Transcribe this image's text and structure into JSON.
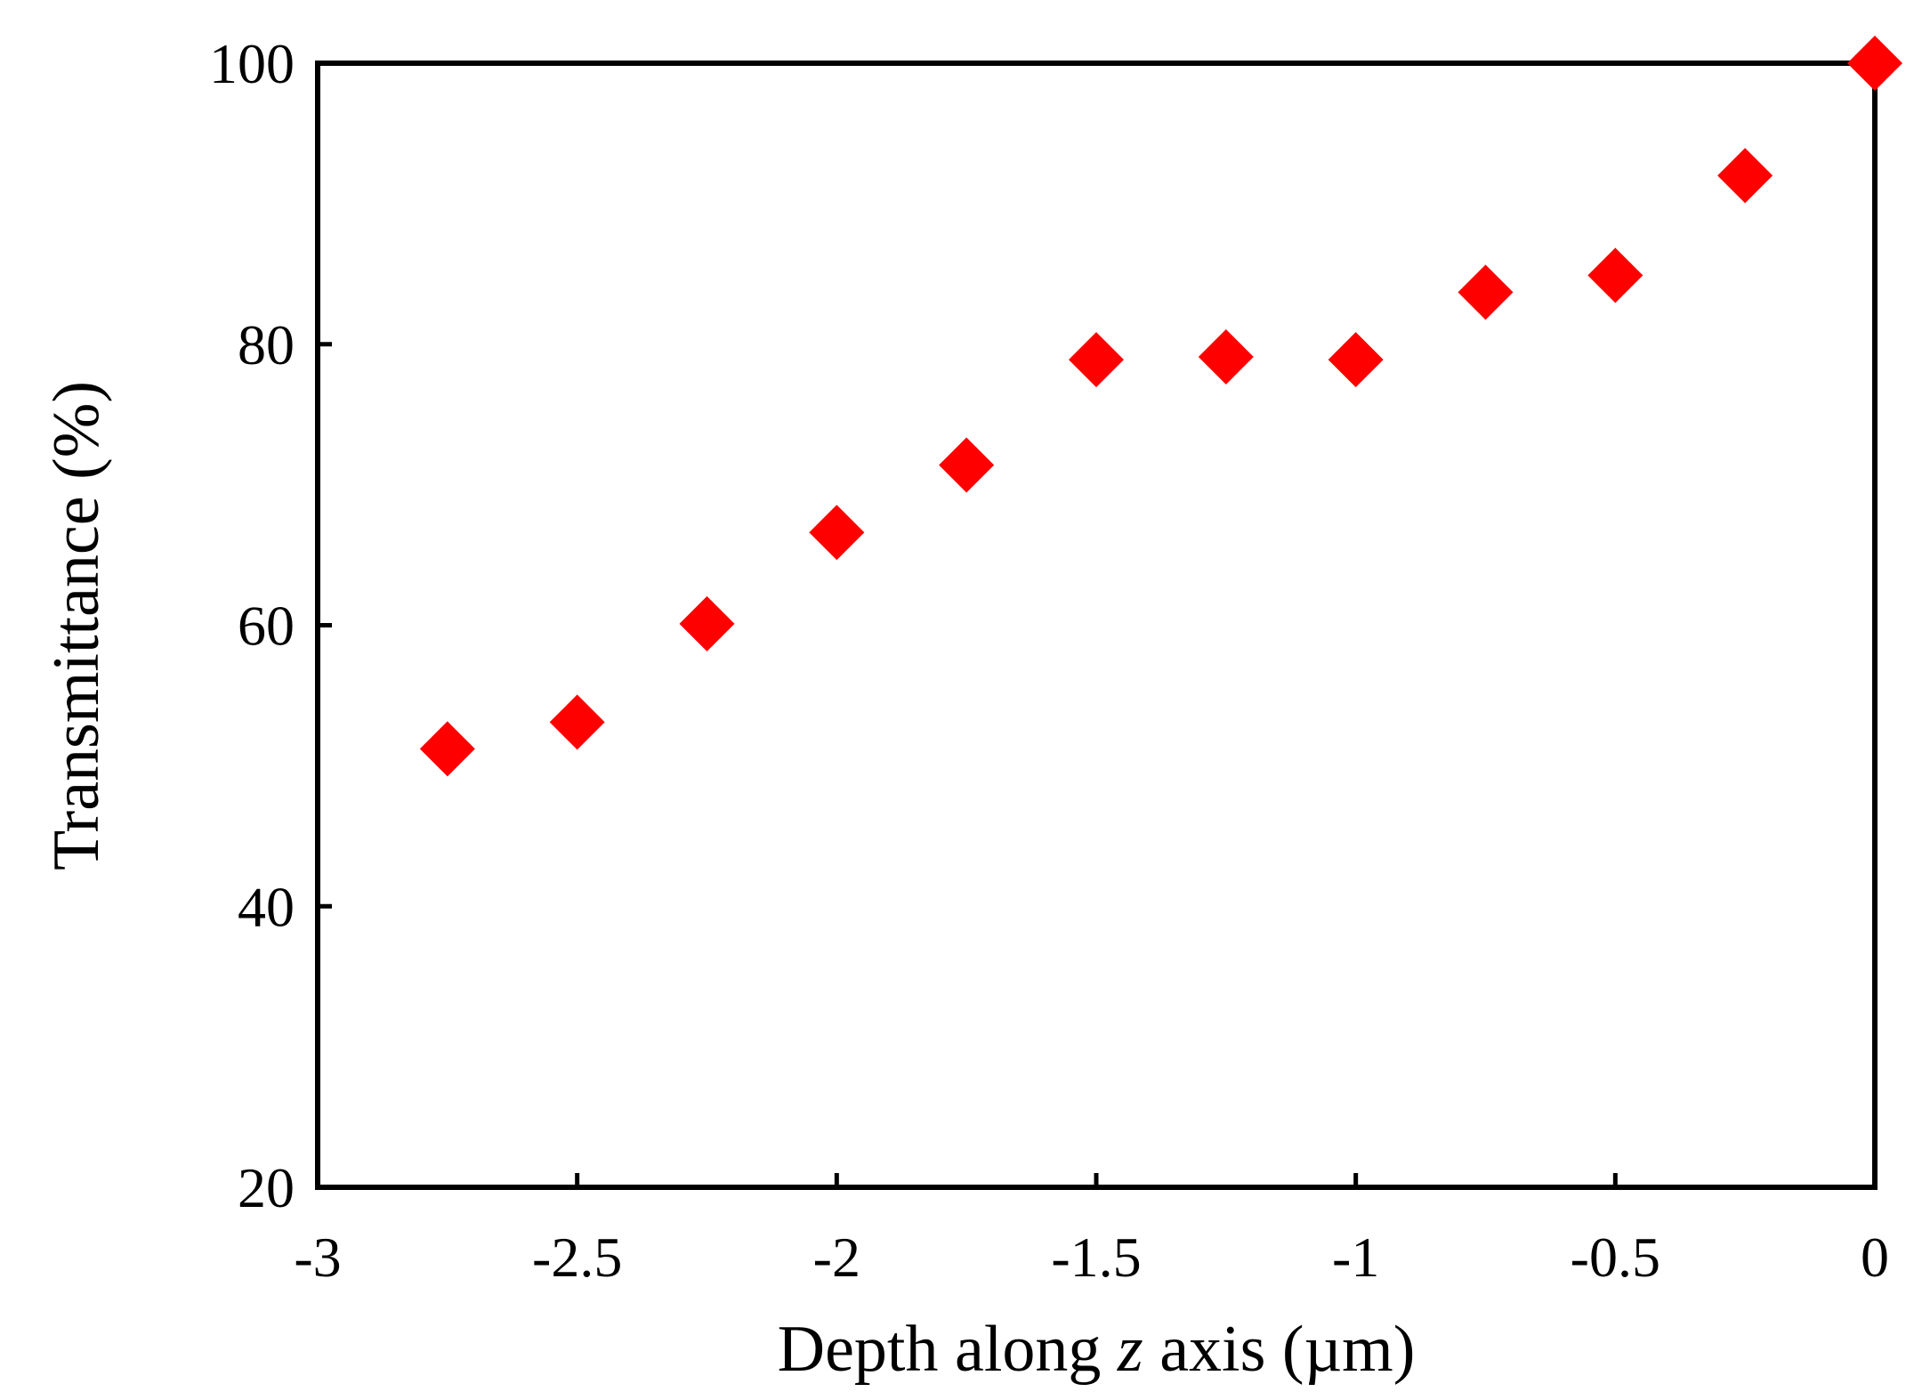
{
  "chart_data": {
    "type": "scatter",
    "title": "",
    "xlabel_parts": [
      "Depth along ",
      "z",
      " axis (µm)"
    ],
    "ylabel": "Transmittance (%)",
    "xlim": [
      -3,
      0
    ],
    "ylim": [
      20,
      100
    ],
    "x_ticks": [
      -3,
      -2.5,
      -2,
      -1.5,
      -1,
      -0.5,
      0
    ],
    "x_tick_labels": [
      "-3",
      "-2.5",
      "-2",
      "-1.5",
      "-1",
      "-0.5",
      "0"
    ],
    "y_ticks": [
      20,
      40,
      60,
      80,
      100
    ],
    "y_tick_labels": [
      "20",
      "40",
      "60",
      "80",
      "100"
    ],
    "grid": false,
    "marker": "diamond",
    "color": "#ff0000",
    "series": [
      {
        "points": [
          {
            "x": -2.75,
            "y": 51.2
          },
          {
            "x": -2.5,
            "y": 53.1
          },
          {
            "x": -2.25,
            "y": 60.1
          },
          {
            "x": -2.0,
            "y": 66.6
          },
          {
            "x": -1.75,
            "y": 71.4
          },
          {
            "x": -1.5,
            "y": 78.9
          },
          {
            "x": -1.25,
            "y": 79.1
          },
          {
            "x": -1.0,
            "y": 78.9
          },
          {
            "x": -0.75,
            "y": 83.7
          },
          {
            "x": -0.5,
            "y": 84.9
          },
          {
            "x": -0.25,
            "y": 92.0
          },
          {
            "x": 0.0,
            "y": 100.0
          }
        ]
      }
    ]
  }
}
